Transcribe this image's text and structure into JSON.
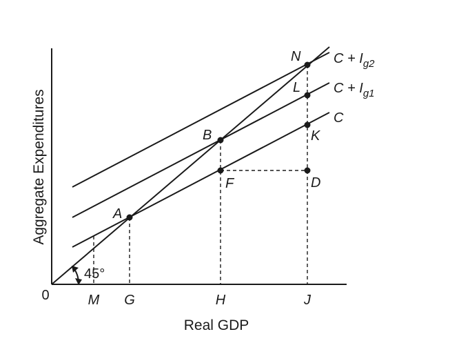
{
  "axes": {
    "y_title": "Aggregate Expenditures",
    "x_title": "Real GDP",
    "origin": "0"
  },
  "x_ticks": [
    "M",
    "G",
    "H",
    "J"
  ],
  "angle_label": "45°",
  "curves": {
    "c": {
      "main": "C"
    },
    "cig1": {
      "main": "C + ",
      "italic": "I",
      "sub": "g1"
    },
    "cig2": {
      "main": "C + ",
      "italic": "I",
      "sub": "g2"
    }
  },
  "points": [
    "A",
    "B",
    "F",
    "D",
    "K",
    "L",
    "N"
  ]
}
